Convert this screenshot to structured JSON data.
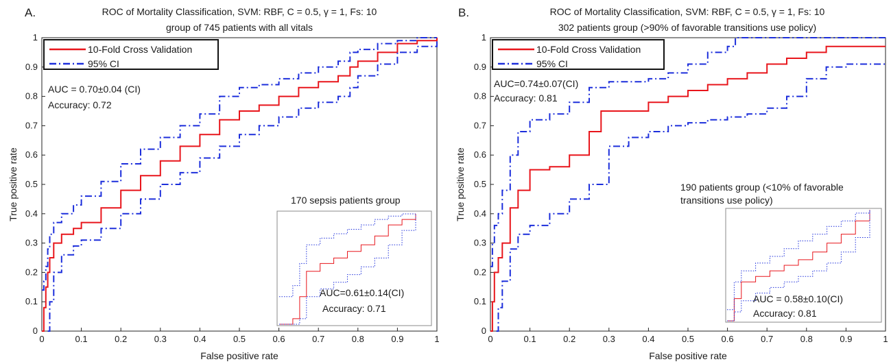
{
  "chart_data": [
    {
      "type": "line",
      "panel_label": "A.",
      "title": "ROC of Mortality Classification, SVM: RBF, C = 0.5, γ = 1, Fs: 10",
      "subtitle": "group of 745 patients with all vitals",
      "xlabel": "False positive rate",
      "ylabel": "True positive rate",
      "xlim": [
        0,
        1
      ],
      "ylim": [
        0,
        1
      ],
      "xticks": [
        "0",
        "0.1",
        "0.2",
        "0.3",
        "0.4",
        "0.5",
        "0.6",
        "0.7",
        "0.8",
        "0.9",
        "1"
      ],
      "yticks": [
        "0",
        "0.1",
        "0.2",
        "0.3",
        "0.4",
        "0.5",
        "0.6",
        "0.7",
        "0.8",
        "0.9",
        "1"
      ],
      "grid": false,
      "legend_position": "top-left",
      "annotations": [
        "AUC = 0.70±0.04 (CI)",
        "Accuracy: 0.72"
      ],
      "series": [
        {
          "name": "10-Fold Cross Validation",
          "color": "#e8151b",
          "style": "solid",
          "x": [
            0,
            0.005,
            0.01,
            0.015,
            0.02,
            0.03,
            0.05,
            0.08,
            0.1,
            0.15,
            0.2,
            0.25,
            0.3,
            0.35,
            0.4,
            0.45,
            0.5,
            0.55,
            0.6,
            0.65,
            0.7,
            0.75,
            0.78,
            0.8,
            0.85,
            0.9,
            0.95,
            1.0
          ],
          "y": [
            0,
            0.08,
            0.15,
            0.2,
            0.25,
            0.3,
            0.33,
            0.35,
            0.37,
            0.42,
            0.48,
            0.53,
            0.58,
            0.63,
            0.67,
            0.72,
            0.75,
            0.77,
            0.8,
            0.83,
            0.85,
            0.87,
            0.9,
            0.92,
            0.95,
            0.98,
            0.99,
            1.0
          ]
        },
        {
          "name": "95% CI",
          "color": "#1c2edb",
          "style": "dashdot",
          "x": [
            0,
            0.005,
            0.01,
            0.015,
            0.02,
            0.03,
            0.05,
            0.08,
            0.1,
            0.15,
            0.2,
            0.25,
            0.3,
            0.35,
            0.4,
            0.45,
            0.5,
            0.55,
            0.6,
            0.65,
            0.7,
            0.75,
            0.78,
            0.8,
            0.85,
            0.9,
            0.95,
            1.0
          ],
          "y": [
            0.14,
            0.17,
            0.22,
            0.28,
            0.33,
            0.37,
            0.4,
            0.43,
            0.46,
            0.51,
            0.57,
            0.62,
            0.66,
            0.7,
            0.74,
            0.8,
            0.83,
            0.84,
            0.86,
            0.88,
            0.9,
            0.92,
            0.95,
            0.96,
            0.98,
            0.99,
            1.0,
            1.0
          ]
        },
        {
          "color": "#1c2edb",
          "style": "dashdot",
          "x": [
            0.015,
            0.02,
            0.03,
            0.05,
            0.08,
            0.1,
            0.15,
            0.2,
            0.25,
            0.3,
            0.35,
            0.4,
            0.45,
            0.5,
            0.55,
            0.6,
            0.65,
            0.7,
            0.75,
            0.78,
            0.8,
            0.85,
            0.9,
            0.95,
            1.0
          ],
          "y": [
            0,
            0.1,
            0.2,
            0.26,
            0.29,
            0.31,
            0.35,
            0.4,
            0.45,
            0.5,
            0.54,
            0.59,
            0.63,
            0.67,
            0.7,
            0.73,
            0.76,
            0.78,
            0.8,
            0.83,
            0.87,
            0.91,
            0.95,
            0.97,
            0.99
          ]
        }
      ],
      "inset": {
        "label": "170 sepsis patients group",
        "annotations": [
          "AUC=0.61±0.14(CI)",
          "Accuracy: 0.71"
        ],
        "series": [
          {
            "color": "#e8151b",
            "style": "solid",
            "x": [
              0,
              0.1,
              0.15,
              0.2,
              0.3,
              0.4,
              0.5,
              0.6,
              0.7,
              0.8,
              0.9,
              1.0
            ],
            "y": [
              0,
              0.05,
              0.25,
              0.48,
              0.55,
              0.6,
              0.66,
              0.72,
              0.8,
              0.9,
              0.95,
              1.0
            ]
          },
          {
            "color": "#1c2edb",
            "style": "dotted",
            "x": [
              0,
              0.1,
              0.15,
              0.2,
              0.3,
              0.4,
              0.5,
              0.6,
              0.7,
              0.8,
              0.9,
              1.0
            ],
            "y": [
              0.25,
              0.35,
              0.55,
              0.72,
              0.78,
              0.82,
              0.86,
              0.9,
              0.95,
              0.98,
              1.0,
              1.0
            ]
          },
          {
            "color": "#1c2edb",
            "style": "dotted",
            "x": [
              0,
              0.1,
              0.15,
              0.2,
              0.3,
              0.4,
              0.5,
              0.6,
              0.7,
              0.8,
              0.9,
              1.0
            ],
            "y": [
              0,
              0.0,
              0.05,
              0.25,
              0.32,
              0.38,
              0.45,
              0.52,
              0.6,
              0.72,
              0.85,
              1.0
            ]
          }
        ]
      }
    },
    {
      "type": "line",
      "panel_label": "B.",
      "title": "ROC of Mortality Classification, SVM: RBF, C = 0.5, γ = 1, Fs: 10",
      "subtitle": "302 patients group (>90% of favorable transitions use policy)",
      "xlabel": "False positive rate",
      "ylabel": "True positive rate",
      "xlim": [
        0,
        1
      ],
      "ylim": [
        0,
        1
      ],
      "xticks": [
        "0",
        "0.1",
        "0.2",
        "0.3",
        "0.4",
        "0.5",
        "0.6",
        "0.7",
        "0.8",
        "0.9",
        "1"
      ],
      "yticks": [
        "0",
        "0.1",
        "0.2",
        "0.3",
        "0.4",
        "0.5",
        "0.6",
        "0.7",
        "0.8",
        "0.9",
        "1"
      ],
      "grid": false,
      "legend_position": "top-left",
      "annotations": [
        "AUC=0.74±0.07(CI)",
        "Accuracy: 0.81"
      ],
      "series": [
        {
          "name": "10-Fold Cross Validation",
          "color": "#e8151b",
          "style": "solid",
          "x": [
            0,
            0.005,
            0.01,
            0.02,
            0.03,
            0.05,
            0.07,
            0.1,
            0.15,
            0.2,
            0.25,
            0.28,
            0.3,
            0.35,
            0.4,
            0.45,
            0.5,
            0.55,
            0.6,
            0.65,
            0.7,
            0.75,
            0.8,
            0.85,
            0.9,
            0.95,
            1.0
          ],
          "y": [
            0,
            0.1,
            0.2,
            0.25,
            0.3,
            0.42,
            0.48,
            0.55,
            0.56,
            0.6,
            0.68,
            0.75,
            0.75,
            0.75,
            0.78,
            0.8,
            0.82,
            0.84,
            0.86,
            0.88,
            0.91,
            0.93,
            0.95,
            0.97,
            0.97,
            0.97,
            0.97
          ]
        },
        {
          "name": "95% CI",
          "color": "#1c2edb",
          "style": "dashdot",
          "x": [
            0,
            0.005,
            0.01,
            0.02,
            0.03,
            0.05,
            0.07,
            0.1,
            0.15,
            0.2,
            0.25,
            0.3,
            0.35,
            0.4,
            0.45,
            0.5,
            0.55,
            0.6,
            0.62,
            0.65,
            0.7,
            0.75,
            0.8,
            0.85,
            0.9,
            0.95,
            1.0
          ],
          "y": [
            0.22,
            0.3,
            0.36,
            0.4,
            0.48,
            0.6,
            0.68,
            0.72,
            0.74,
            0.78,
            0.83,
            0.85,
            0.85,
            0.86,
            0.88,
            0.91,
            0.95,
            0.97,
            1.0,
            1.0,
            1.0,
            1.0,
            1.0,
            1.0,
            1.0,
            1.0,
            1.0
          ]
        },
        {
          "color": "#1c2edb",
          "style": "dashdot",
          "x": [
            0.015,
            0.02,
            0.03,
            0.05,
            0.07,
            0.1,
            0.15,
            0.2,
            0.25,
            0.3,
            0.35,
            0.4,
            0.45,
            0.5,
            0.55,
            0.6,
            0.65,
            0.7,
            0.75,
            0.8,
            0.85,
            0.9,
            0.95,
            1.0
          ],
          "y": [
            0,
            0.08,
            0.17,
            0.28,
            0.33,
            0.36,
            0.4,
            0.45,
            0.5,
            0.63,
            0.66,
            0.68,
            0.7,
            0.71,
            0.72,
            0.73,
            0.74,
            0.76,
            0.8,
            0.86,
            0.9,
            0.91,
            0.91,
            0.91
          ]
        }
      ],
      "inset": {
        "label": "190 patients group (<10% of favorable transitions use policy)",
        "annotations": [
          "AUC = 0.58±0.10(CI)",
          "Accuracy: 0.81"
        ],
        "series": [
          {
            "color": "#e8151b",
            "style": "solid",
            "x": [
              0,
              0.05,
              0.1,
              0.2,
              0.3,
              0.4,
              0.5,
              0.6,
              0.7,
              0.8,
              0.9,
              1.0
            ],
            "y": [
              0,
              0.2,
              0.35,
              0.4,
              0.45,
              0.5,
              0.55,
              0.62,
              0.7,
              0.78,
              0.9,
              1.0
            ]
          },
          {
            "color": "#1c2edb",
            "style": "dotted",
            "x": [
              0,
              0.05,
              0.1,
              0.2,
              0.3,
              0.4,
              0.5,
              0.6,
              0.7,
              0.8,
              0.9,
              1.0
            ],
            "y": [
              0.1,
              0.35,
              0.45,
              0.52,
              0.58,
              0.65,
              0.72,
              0.78,
              0.85,
              0.9,
              0.97,
              1.0
            ]
          },
          {
            "color": "#1c2edb",
            "style": "dotted",
            "x": [
              0,
              0.05,
              0.1,
              0.2,
              0.3,
              0.4,
              0.5,
              0.6,
              0.7,
              0.8,
              0.9,
              1.0
            ],
            "y": [
              0,
              0.08,
              0.18,
              0.25,
              0.3,
              0.35,
              0.4,
              0.45,
              0.52,
              0.62,
              0.75,
              1.0
            ]
          }
        ]
      }
    }
  ]
}
